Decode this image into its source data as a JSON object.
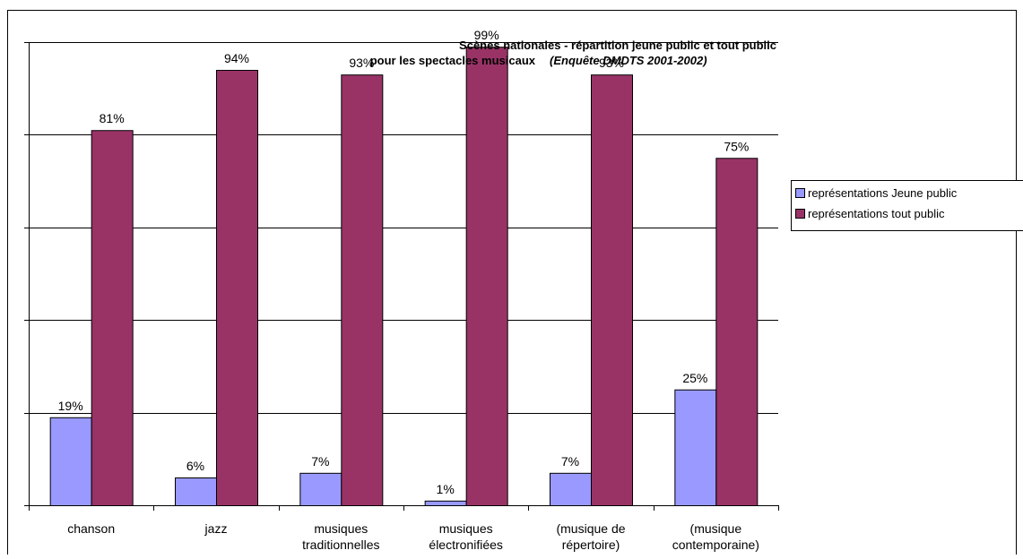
{
  "chart_data": {
    "type": "bar",
    "title_line1": "Scènes nationales - répartition jeune public et tout public",
    "title_line2": "pour les spectacles musicaux",
    "title_source": "(Enquête DMDTS 2001-2002)",
    "categories": [
      [
        "chanson"
      ],
      [
        "jazz"
      ],
      [
        "musiques",
        "traditionnelles"
      ],
      [
        "musiques",
        "électronifiées"
      ],
      [
        "(musique de",
        "répertoire)"
      ],
      [
        "(musique",
        "contemporaine)"
      ]
    ],
    "series": [
      {
        "name": "représentations Jeune public",
        "color": "#9999ff",
        "values": [
          19,
          6,
          7,
          1,
          7,
          25
        ],
        "labels": [
          "19%",
          "6%",
          "7%",
          "1%",
          "7%",
          "25%"
        ]
      },
      {
        "name": "représentations tout public",
        "color": "#993366",
        "values": [
          81,
          94,
          93,
          99,
          93,
          75
        ],
        "labels": [
          "81%",
          "94%",
          "93%",
          "99%",
          "93%",
          "75%"
        ]
      }
    ],
    "ylim": [
      0,
      100
    ],
    "y_ticks": [
      0,
      20,
      40,
      60,
      80,
      100
    ],
    "show_y_tick_labels": false,
    "grid": true,
    "legend_position": "right"
  }
}
